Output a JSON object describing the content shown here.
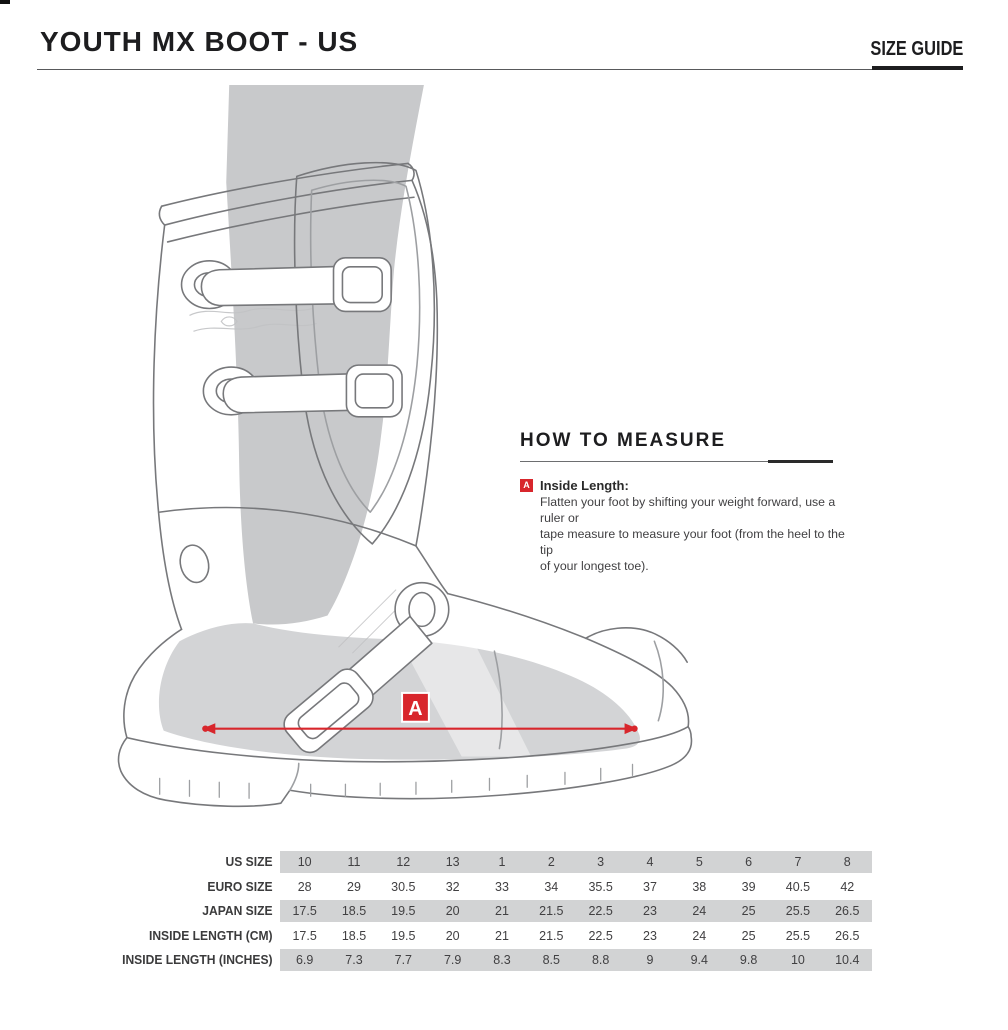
{
  "header": {
    "title": "YOUTH MX BOOT - US",
    "size_guide_label": "SIZE GUIDE"
  },
  "how_to_measure": {
    "heading": "HOW TO MEASURE",
    "marker": "A",
    "item_title": "Inside Length:",
    "item_lines": [
      "Flatten your foot by shifting your weight forward, use a ruler or",
      "tape measure to measure your foot (from the heel to the tip",
      "of your longest toe)."
    ]
  },
  "diagram": {
    "marker": "A"
  },
  "colors": {
    "accent_red": "#d8262c",
    "row_gray": "#d2d3d4",
    "line_gray": "#77787b",
    "leg_gray": "#c8c9cb"
  },
  "size_table": {
    "rows": [
      {
        "label": "US SIZE",
        "shaded": true,
        "values": [
          "10",
          "11",
          "12",
          "13",
          "1",
          "2",
          "3",
          "4",
          "5",
          "6",
          "7",
          "8"
        ]
      },
      {
        "label": "EURO SIZE",
        "shaded": false,
        "values": [
          "28",
          "29",
          "30.5",
          "32",
          "33",
          "34",
          "35.5",
          "37",
          "38",
          "39",
          "40.5",
          "42"
        ]
      },
      {
        "label": "JAPAN SIZE",
        "shaded": true,
        "values": [
          "17.5",
          "18.5",
          "19.5",
          "20",
          "21",
          "21.5",
          "22.5",
          "23",
          "24",
          "25",
          "25.5",
          "26.5"
        ]
      },
      {
        "label": "INSIDE LENGTH (CM)",
        "shaded": false,
        "values": [
          "17.5",
          "18.5",
          "19.5",
          "20",
          "21",
          "21.5",
          "22.5",
          "23",
          "24",
          "25",
          "25.5",
          "26.5"
        ]
      },
      {
        "label": "INSIDE LENGTH (INCHES)",
        "shaded": true,
        "values": [
          "6.9",
          "7.3",
          "7.7",
          "7.9",
          "8.3",
          "8.5",
          "8.8",
          "9",
          "9.4",
          "9.8",
          "10",
          "10.4"
        ]
      }
    ]
  }
}
